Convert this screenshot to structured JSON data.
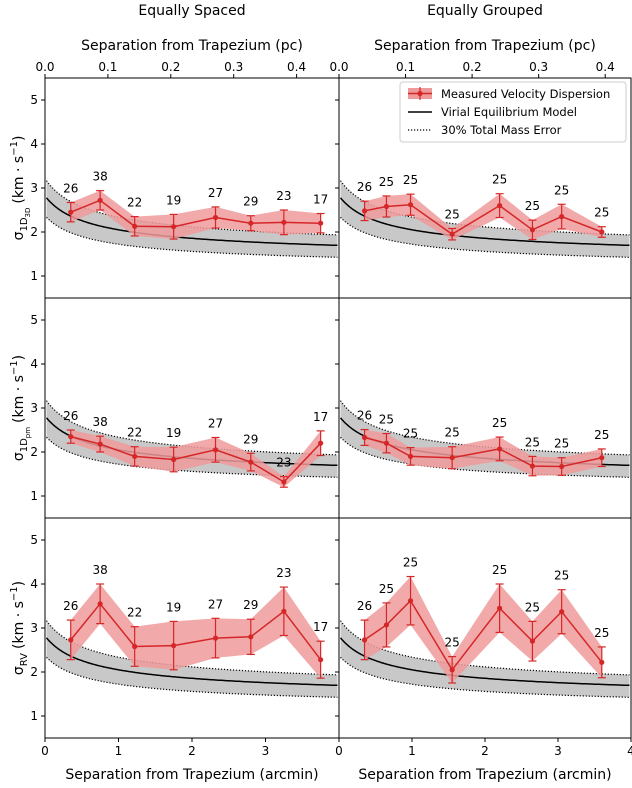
{
  "column_titles": [
    "Equally Spaced",
    "Equally Grouped"
  ],
  "top_axis_label": "Separation from Trapezium (pc)",
  "bottom_axis_label": "Separation from Trapezium (arcmin)",
  "legend": {
    "measured": "Measured Velocity Dispersion",
    "model": "Virial Equilibrium Model",
    "error": "30% Total Mass Error"
  },
  "colors": {
    "measured": "#d62728",
    "band": "#ee9a9b",
    "model_band": "#c8c8c8",
    "model": "#000000"
  },
  "chart_data": {
    "type": "line",
    "x_axis": {
      "bottom_ticks": [
        0,
        1,
        2,
        3
      ],
      "bottom_tick_labels_by_column": [
        [
          "0",
          "1",
          "2",
          "3"
        ],
        [
          "0",
          "1",
          "2",
          "3",
          "4"
        ]
      ],
      "xlim_arcmin": [
        0,
        4.0
      ],
      "top_ticks_pc": [
        "0.0",
        "0.1",
        "0.2",
        "0.3",
        "0.4"
      ]
    },
    "y_axis": {
      "ylim": [
        0.5,
        5.5
      ],
      "ticks": [
        1,
        2,
        3,
        4,
        5
      ]
    },
    "model": {
      "A": 1.69,
      "floor": 1.25,
      "r0": 0.35,
      "band_frac": [
        0.84,
        1.14
      ]
    },
    "rows": [
      {
        "ylabel_main": "σ",
        "ylabel_sub": "1D",
        "ylabel_subsub": "3D",
        "ylabel_unit": "(km · s",
        "ylabel_exp": "−1",
        "ylabel_close": ")",
        "panels": [
          {
            "x": [
              0.35,
              0.75,
              1.22,
              1.75,
              2.32,
              2.8,
              3.25,
              3.75
            ],
            "y": [
              2.45,
              2.72,
              2.13,
              2.12,
              2.33,
              2.2,
              2.22,
              2.2
            ],
            "err": [
              0.22,
              0.22,
              0.22,
              0.28,
              0.24,
              0.17,
              0.28,
              0.22
            ],
            "counts": [
              "26",
              "38",
              "22",
              "19",
              "27",
              "29",
              "23",
              "17"
            ]
          },
          {
            "x": [
              0.35,
              0.65,
              0.98,
              1.55,
              2.2,
              2.65,
              3.05,
              3.6
            ],
            "y": [
              2.48,
              2.58,
              2.62,
              1.95,
              2.6,
              2.05,
              2.35,
              2.0
            ],
            "err": [
              0.22,
              0.24,
              0.24,
              0.13,
              0.27,
              0.22,
              0.28,
              0.12
            ],
            "counts": [
              "26",
              "25",
              "25",
              "25",
              "25",
              "25",
              "25",
              "25"
            ]
          }
        ]
      },
      {
        "ylabel_main": "σ",
        "ylabel_sub": "1D",
        "ylabel_subsub": "pm",
        "ylabel_unit": "(km · s",
        "ylabel_exp": "−1",
        "ylabel_close": ")",
        "panels": [
          {
            "x": [
              0.35,
              0.75,
              1.22,
              1.75,
              2.32,
              2.8,
              3.25,
              3.75
            ],
            "y": [
              2.35,
              2.18,
              1.9,
              1.83,
              2.05,
              1.77,
              1.32,
              2.2
            ],
            "err": [
              0.15,
              0.18,
              0.22,
              0.28,
              0.28,
              0.2,
              0.12,
              0.28
            ],
            "counts": [
              "26",
              "38",
              "22",
              "19",
              "27",
              "29",
              "23",
              "17"
            ]
          },
          {
            "x": [
              0.35,
              0.65,
              0.98,
              1.55,
              2.2,
              2.65,
              3.05,
              3.6
            ],
            "y": [
              2.33,
              2.2,
              1.9,
              1.87,
              2.07,
              1.68,
              1.67,
              1.87
            ],
            "err": [
              0.18,
              0.22,
              0.2,
              0.25,
              0.27,
              0.22,
              0.2,
              0.2
            ],
            "counts": [
              "26",
              "25",
              "25",
              "25",
              "25",
              "25",
              "25",
              "25"
            ]
          }
        ]
      },
      {
        "ylabel_main": "σ",
        "ylabel_sub": "RV",
        "ylabel_subsub": "",
        "ylabel_unit": "(km · s",
        "ylabel_exp": "−1",
        "ylabel_close": ")",
        "panels": [
          {
            "x": [
              0.35,
              0.75,
              1.22,
              1.75,
              2.32,
              2.8,
              3.25,
              3.75
            ],
            "y": [
              2.73,
              3.55,
              2.58,
              2.6,
              2.77,
              2.8,
              3.38,
              2.28
            ],
            "err": [
              0.45,
              0.45,
              0.45,
              0.55,
              0.45,
              0.4,
              0.55,
              0.42
            ],
            "counts": [
              "26",
              "38",
              "22",
              "19",
              "27",
              "29",
              "23",
              "17"
            ]
          },
          {
            "x": [
              0.35,
              0.65,
              0.98,
              1.55,
              2.2,
              2.65,
              3.05,
              3.6
            ],
            "y": [
              2.73,
              3.07,
              3.62,
              2.05,
              3.45,
              2.7,
              3.37,
              2.22
            ],
            "err": [
              0.45,
              0.5,
              0.55,
              0.3,
              0.55,
              0.45,
              0.5,
              0.35
            ],
            "counts": [
              "26",
              "25",
              "25",
              "25",
              "25",
              "25",
              "25",
              "25"
            ]
          }
        ]
      }
    ]
  }
}
